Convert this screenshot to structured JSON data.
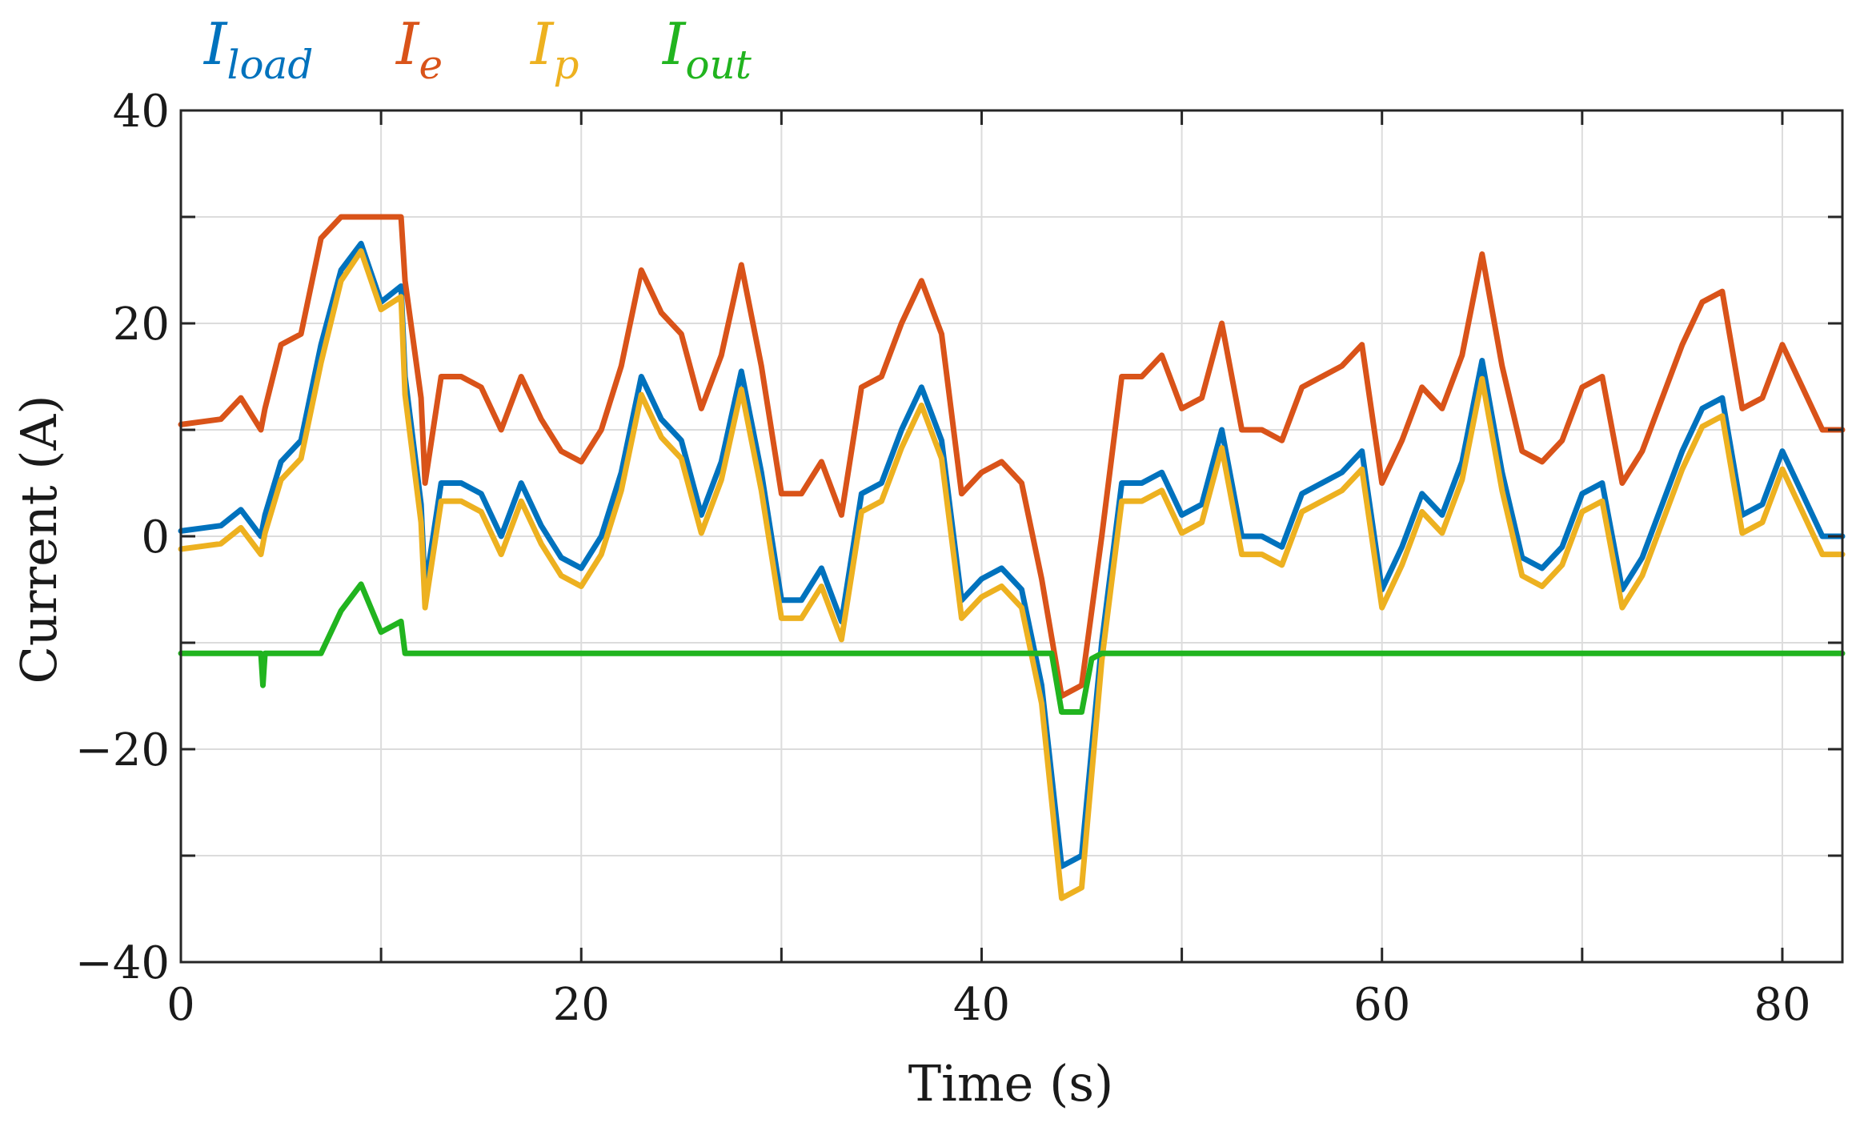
{
  "chart_data": {
    "type": "line",
    "title": "",
    "xlabel": "Time (s)",
    "ylabel": "Current (A)",
    "xlim": [
      0,
      83
    ],
    "ylim": [
      -40,
      40
    ],
    "xticks": [
      0,
      10,
      20,
      30,
      40,
      50,
      60,
      70,
      80
    ],
    "xtick_labels": [
      "0",
      "",
      "20",
      "",
      "40",
      "",
      "60",
      "",
      "80"
    ],
    "yticks": [
      -40,
      -30,
      -20,
      -10,
      0,
      10,
      20,
      30,
      40
    ],
    "ytick_labels": [
      "−40",
      "",
      "−20",
      "",
      "0",
      "",
      "20",
      "",
      "40"
    ],
    "grid": true,
    "legend_position": "top-left, above plot",
    "series": [
      {
        "name": "I_load",
        "symbol": "I",
        "subscript": "load",
        "color": "#0072BD",
        "x": [
          0,
          2,
          3,
          4,
          4.2,
          5,
          6,
          7,
          8,
          9,
          10,
          11,
          11.2,
          12,
          12.2,
          13,
          14,
          15,
          16,
          17,
          18,
          19,
          20,
          21,
          22,
          23,
          24,
          25,
          26,
          27,
          28,
          29,
          30,
          31,
          32,
          33,
          34,
          35,
          36,
          37,
          38,
          39,
          40,
          41,
          42,
          43,
          44,
          45,
          46,
          47,
          48,
          49,
          50,
          51,
          52,
          53,
          54,
          55,
          56,
          57,
          58,
          59,
          60,
          61,
          62,
          63,
          64,
          65,
          66,
          67,
          68,
          69,
          70,
          71,
          72,
          73,
          74,
          75,
          76,
          77,
          78,
          79,
          80,
          81,
          82,
          83
        ],
        "y": [
          0.5,
          1,
          2.5,
          0,
          2,
          7,
          9,
          18,
          25,
          27.5,
          22,
          23.5,
          15,
          3,
          -5,
          5,
          5,
          4,
          0,
          5,
          1,
          -2,
          -3,
          0,
          6,
          15,
          11,
          9,
          2,
          7,
          15.5,
          6,
          -6,
          -6,
          -3,
          -8,
          4,
          5,
          10,
          14,
          9,
          -6,
          -4,
          -3,
          -5,
          -14,
          -31,
          -30,
          -10,
          5,
          5,
          6,
          2,
          3,
          10,
          0,
          0,
          -1,
          4,
          5,
          6,
          8,
          -5,
          -1,
          4,
          2,
          7,
          16.5,
          6,
          -2,
          -3,
          -1,
          4,
          5,
          -5,
          -2,
          3,
          8,
          12,
          13,
          2,
          3,
          8,
          4,
          0,
          0
        ]
      },
      {
        "name": "I_e",
        "symbol": "I",
        "subscript": "e",
        "color": "#D95319",
        "x": [
          0,
          2,
          3,
          4,
          4.2,
          5,
          6,
          7,
          8,
          9,
          10,
          11,
          11.2,
          12,
          12.2,
          13,
          14,
          15,
          16,
          17,
          18,
          19,
          20,
          21,
          22,
          23,
          24,
          25,
          26,
          27,
          28,
          29,
          30,
          31,
          32,
          33,
          34,
          35,
          36,
          37,
          38,
          39,
          40,
          41,
          42,
          43,
          44,
          45,
          46,
          47,
          48,
          49,
          50,
          51,
          52,
          53,
          54,
          55,
          56,
          57,
          58,
          59,
          60,
          61,
          62,
          63,
          64,
          65,
          66,
          67,
          68,
          69,
          70,
          71,
          72,
          73,
          74,
          75,
          76,
          77,
          78,
          79,
          80,
          81,
          82,
          83
        ],
        "y": [
          10.5,
          11,
          13,
          10,
          12,
          18,
          19,
          28,
          30,
          30,
          30,
          30,
          24,
          13,
          5,
          15,
          15,
          14,
          10,
          15,
          11,
          8,
          7,
          10,
          16,
          25,
          21,
          19,
          12,
          17,
          25.5,
          16,
          4,
          4,
          7,
          2,
          14,
          15,
          20,
          24,
          19,
          4,
          6,
          7,
          5,
          -4,
          -15,
          -14,
          0,
          15,
          15,
          17,
          12,
          13,
          20,
          10,
          10,
          9,
          14,
          15,
          16,
          18,
          5,
          9,
          14,
          12,
          17,
          26.5,
          16,
          8,
          7,
          9,
          14,
          15,
          5,
          8,
          13,
          18,
          22,
          23,
          12,
          13,
          18,
          14,
          10,
          10
        ]
      },
      {
        "name": "I_p",
        "symbol": "I",
        "subscript": "p",
        "color": "#EDB120",
        "x": [
          0,
          2,
          3,
          4,
          4.2,
          5,
          6,
          7,
          8,
          9,
          10,
          11,
          11.2,
          12,
          12.2,
          13,
          14,
          15,
          16,
          17,
          18,
          19,
          20,
          21,
          22,
          23,
          24,
          25,
          26,
          27,
          28,
          29,
          30,
          31,
          32,
          33,
          34,
          35,
          36,
          37,
          38,
          39,
          40,
          41,
          42,
          43,
          44,
          45,
          46,
          47,
          48,
          49,
          50,
          51,
          52,
          53,
          54,
          55,
          56,
          57,
          58,
          59,
          60,
          61,
          62,
          63,
          64,
          65,
          66,
          67,
          68,
          69,
          70,
          71,
          72,
          73,
          74,
          75,
          76,
          77,
          78,
          79,
          80,
          81,
          82,
          83
        ],
        "y": [
          -1.2,
          -0.7,
          0.8,
          -1.7,
          0.3,
          5.3,
          7.3,
          16.3,
          24,
          26.8,
          21.3,
          22.5,
          13.3,
          1.3,
          -6.7,
          3.3,
          3.3,
          2.3,
          -1.7,
          3.3,
          -0.7,
          -3.7,
          -4.7,
          -1.7,
          4.3,
          13.3,
          9.3,
          7.3,
          0.3,
          5.3,
          13.8,
          4.3,
          -7.7,
          -7.7,
          -4.7,
          -9.7,
          2.3,
          3.3,
          8.3,
          12.3,
          7.3,
          -7.7,
          -5.7,
          -4.7,
          -6.7,
          -15.7,
          -34,
          -33,
          -11.7,
          3.3,
          3.3,
          4.3,
          0.3,
          1.3,
          8.3,
          -1.7,
          -1.7,
          -2.7,
          2.3,
          3.3,
          4.3,
          6.3,
          -6.7,
          -2.7,
          2.3,
          0.3,
          5.3,
          14.8,
          4.3,
          -3.7,
          -4.7,
          -2.7,
          2.3,
          3.3,
          -6.7,
          -3.7,
          1.3,
          6.3,
          10.3,
          11.3,
          0.3,
          1.3,
          6.3,
          2.3,
          -1.7,
          -1.7
        ]
      },
      {
        "name": "I_out",
        "symbol": "I",
        "subscript": "out",
        "color": "#21B41F",
        "x": [
          0,
          4,
          4.1,
          4.2,
          7,
          8,
          9,
          10,
          11,
          11.2,
          12,
          20,
          30,
          40,
          43.5,
          44,
          45,
          45.5,
          46,
          46.5,
          50,
          60,
          70,
          80,
          83
        ],
        "y": [
          -11,
          -11,
          -14,
          -11,
          -11,
          -7,
          -4.5,
          -9,
          -8,
          -11,
          -11,
          -11,
          -11,
          -11,
          -11,
          -16.5,
          -16.5,
          -11.5,
          -11,
          -11,
          -11,
          -11,
          -11,
          -11,
          -11
        ]
      }
    ]
  }
}
